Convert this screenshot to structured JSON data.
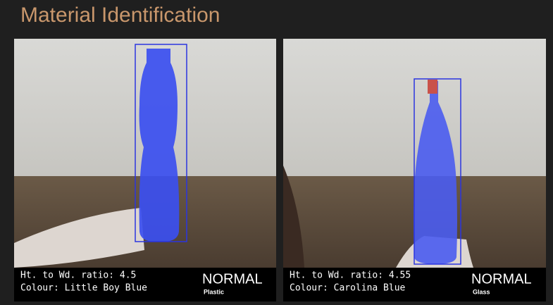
{
  "header": {
    "title": "Material Identification"
  },
  "panels": [
    {
      "ratio": "Ht. to Wd. ratio: 4.5",
      "colour": "Colour: Little Boy Blue",
      "status": "NORMAL",
      "material": "Plastic"
    },
    {
      "ratio": "Ht. to Wd. ratio: 4.55",
      "colour": "Colour: Carolina Blue",
      "status": "NORMAL",
      "material": "Glass"
    }
  ]
}
